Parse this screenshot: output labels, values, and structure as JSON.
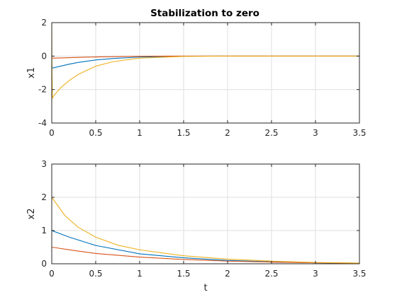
{
  "figure": {
    "title": "Stabilization to zero",
    "background": "#ffffff"
  },
  "chart_data": [
    {
      "type": "line",
      "title": "Stabilization to zero",
      "xlabel": "",
      "ylabel": "x1",
      "xlim": [
        0,
        3.5
      ],
      "ylim": [
        -4,
        2
      ],
      "xticks": [
        0,
        0.5,
        1,
        1.5,
        2,
        2.5,
        3,
        3.5
      ],
      "xtick_labels": [
        "0",
        "0.5",
        "1",
        "1.5",
        "2",
        "2.5",
        "3",
        "3.5"
      ],
      "yticks": [
        -4,
        -2,
        0,
        2
      ],
      "ytick_labels": [
        "-4",
        "-2",
        "0",
        "2"
      ],
      "grid": true,
      "series": [
        {
          "color": "#0072bd",
          "x": [
            0,
            0.005,
            0.01,
            0.02,
            0.1,
            0.2,
            0.3,
            0.5,
            0.7,
            1.0,
            1.5,
            2.0,
            2.5,
            3.0,
            3.5
          ],
          "y": [
            -0.5,
            -0.7,
            -0.71,
            -0.7,
            -0.6,
            -0.48,
            -0.38,
            -0.23,
            -0.14,
            -0.06,
            -0.01,
            0,
            0,
            0,
            0
          ]
        },
        {
          "color": "#d95319",
          "x": [
            0,
            0.01,
            0.1,
            0.3,
            0.5,
            0.7,
            1.0,
            1.5,
            2.0,
            2.5,
            3.0,
            3.5
          ],
          "y": [
            -0.1,
            -0.12,
            -0.11,
            -0.08,
            -0.05,
            -0.03,
            -0.01,
            0,
            0,
            0,
            0,
            0
          ]
        },
        {
          "color": "#edb120",
          "x": [
            0,
            0.003,
            0.008,
            0.02,
            0.05,
            0.1,
            0.2,
            0.3,
            0.5,
            0.7,
            1.0,
            1.5,
            2.0,
            2.5,
            3.0,
            3.5
          ],
          "y": [
            1.9,
            -1.0,
            -2.5,
            -2.4,
            -2.2,
            -1.9,
            -1.45,
            -1.1,
            -0.6,
            -0.33,
            -0.12,
            -0.02,
            0,
            0,
            0,
            0
          ]
        }
      ]
    },
    {
      "type": "line",
      "title": "",
      "xlabel": "t",
      "ylabel": "x2",
      "xlim": [
        0,
        3.5
      ],
      "ylim": [
        0,
        3
      ],
      "xticks": [
        0,
        0.5,
        1,
        1.5,
        2,
        2.5,
        3,
        3.5
      ],
      "xtick_labels": [
        "0",
        "0.5",
        "1",
        "1.5",
        "2",
        "2.5",
        "3",
        "3.5"
      ],
      "yticks": [
        0,
        1,
        2,
        3
      ],
      "ytick_labels": [
        "0",
        "1",
        "2",
        "3"
      ],
      "grid": true,
      "series": [
        {
          "color": "#0072bd",
          "x": [
            0,
            0.2,
            0.5,
            1.0,
            1.5,
            2.0,
            2.5,
            3.0,
            3.5
          ],
          "y": [
            1.0,
            0.8,
            0.55,
            0.3,
            0.18,
            0.1,
            0.06,
            0.03,
            0.01
          ]
        },
        {
          "color": "#d95319",
          "x": [
            0,
            0.25,
            0.5,
            1.0,
            1.5,
            2.0,
            2.5,
            3.0,
            3.5
          ],
          "y": [
            0.5,
            0.4,
            0.31,
            0.2,
            0.13,
            0.08,
            0.05,
            0.03,
            0.02
          ]
        },
        {
          "color": "#edb120",
          "x": [
            0,
            0.15,
            0.3,
            0.5,
            0.75,
            1.0,
            1.5,
            2.0,
            2.5,
            3.0,
            3.5
          ],
          "y": [
            2.0,
            1.45,
            1.1,
            0.8,
            0.56,
            0.42,
            0.24,
            0.14,
            0.08,
            0.04,
            0.02
          ]
        }
      ]
    }
  ]
}
